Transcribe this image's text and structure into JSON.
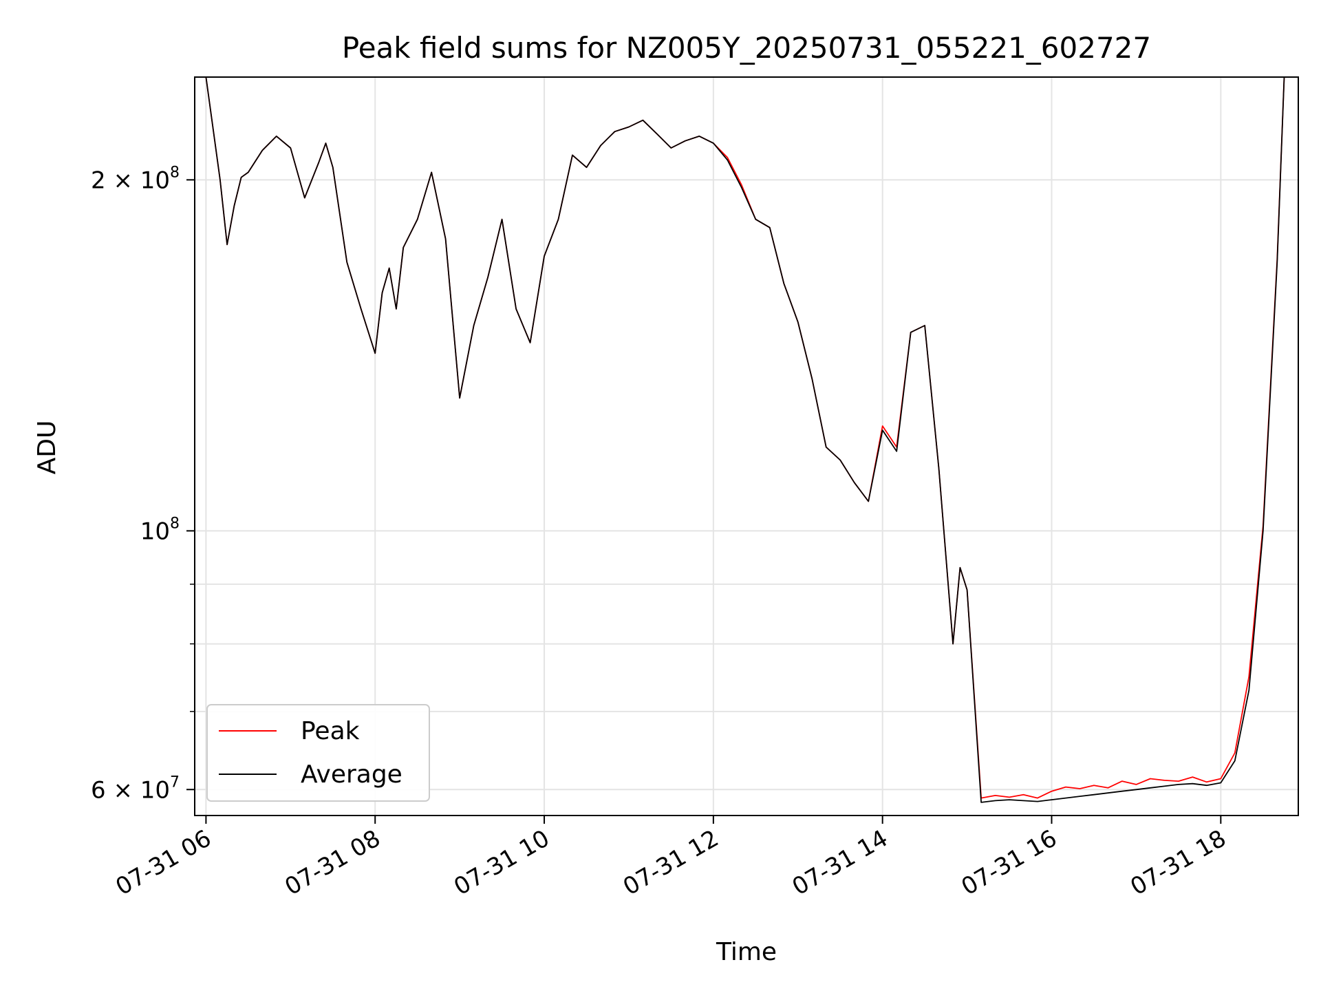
{
  "chart_data": {
    "type": "line",
    "title": "Peak field sums for NZ005Y_20250731_055221_602727",
    "xlabel": "Time",
    "ylabel": "ADU",
    "yscale": "log",
    "xlim": [
      "2025-07-31 05:52",
      "2025-07-31 18:55"
    ],
    "ylim": [
      57000000,
      245000000
    ],
    "x_ticks": [
      "07-31 06",
      "07-31 08",
      "07-31 10",
      "07-31 12",
      "07-31 14",
      "07-31 16",
      "07-31 18"
    ],
    "y_ticks": [
      {
        "value": 200000000,
        "base": "2 × 10",
        "exp": "8"
      },
      {
        "value": 100000000,
        "base": "10",
        "exp": "8"
      },
      {
        "value": 60000000,
        "base": "6 × 10",
        "exp": "7"
      }
    ],
    "y_minor_ticks": [
      70000000,
      80000000,
      90000000
    ],
    "grid": true,
    "legend": {
      "position": "lower-left",
      "entries": [
        {
          "name": "Peak",
          "color": "#ff0000"
        },
        {
          "name": "Average",
          "color": "#000000"
        }
      ]
    },
    "x": [
      "06:00",
      "06:10",
      "06:15",
      "06:20",
      "06:25",
      "06:30",
      "06:40",
      "06:50",
      "07:00",
      "07:10",
      "07:20",
      "07:25",
      "07:30",
      "07:40",
      "07:50",
      "08:00",
      "08:05",
      "08:10",
      "08:15",
      "08:20",
      "08:30",
      "08:40",
      "08:50",
      "09:00",
      "09:10",
      "09:20",
      "09:30",
      "09:40",
      "09:50",
      "10:00",
      "10:10",
      "10:20",
      "10:30",
      "10:40",
      "10:50",
      "11:00",
      "11:10",
      "11:20",
      "11:30",
      "11:40",
      "11:50",
      "12:00",
      "12:10",
      "12:20",
      "12:30",
      "12:40",
      "12:50",
      "13:00",
      "13:10",
      "13:20",
      "13:30",
      "13:40",
      "13:50",
      "14:00",
      "14:10",
      "14:20",
      "14:30",
      "14:40",
      "14:50",
      "14:55",
      "15:00",
      "15:10",
      "15:20",
      "15:30",
      "15:40",
      "15:50",
      "16:00",
      "16:10",
      "16:20",
      "16:30",
      "16:40",
      "16:50",
      "17:00",
      "17:10",
      "17:20",
      "17:30",
      "17:40",
      "17:50",
      "18:00",
      "18:10",
      "18:20",
      "18:30",
      "18:40",
      "18:45"
    ],
    "series": [
      {
        "name": "Average",
        "color": "#000000",
        "values": [
          245000000,
          200000000,
          176000000,
          190000000,
          201000000,
          203000000,
          212000000,
          218000000,
          213000000,
          193000000,
          207000000,
          215000000,
          205000000,
          170000000,
          155000000,
          142000000,
          160000000,
          168000000,
          155000000,
          175000000,
          185000000,
          203000000,
          178000000,
          130000000,
          150000000,
          165000000,
          185000000,
          155000000,
          145000000,
          172000000,
          185000000,
          210000000,
          205000000,
          214000000,
          220000000,
          222000000,
          225000000,
          219000000,
          213000000,
          216000000,
          218000000,
          215000000,
          208000000,
          197000000,
          185000000,
          182000000,
          163000000,
          151000000,
          135000000,
          118000000,
          115000000,
          110000000,
          106000000,
          122000000,
          117000000,
          148000000,
          150000000,
          113000000,
          80000000,
          93000000,
          89000000,
          58500000,
          58700000,
          58800000,
          58700000,
          58600000,
          58800000,
          59000000,
          59200000,
          59400000,
          59600000,
          59800000,
          60000000,
          60200000,
          60400000,
          60600000,
          60700000,
          60500000,
          60800000,
          63500000,
          73000000,
          100000000,
          170000000,
          245000000
        ]
      },
      {
        "name": "Peak",
        "color": "#ff0000",
        "values": [
          245000000,
          200000000,
          176000000,
          190000000,
          201000000,
          203000000,
          212000000,
          218000000,
          213000000,
          193000000,
          207000000,
          215000000,
          205000000,
          170000000,
          155000000,
          142000000,
          160000000,
          168000000,
          155000000,
          175000000,
          185000000,
          203000000,
          178000000,
          130000000,
          150000000,
          165000000,
          185000000,
          155000000,
          145000000,
          172000000,
          185000000,
          210000000,
          205000000,
          214000000,
          220000000,
          222000000,
          225000000,
          219000000,
          213000000,
          216000000,
          218000000,
          215000000,
          209000000,
          198000000,
          185000000,
          182000000,
          163000000,
          151000000,
          135000000,
          118000000,
          115000000,
          110000000,
          106000000,
          123000000,
          118000000,
          148000000,
          150000000,
          113000000,
          80000000,
          93000000,
          89000000,
          59000000,
          59300000,
          59100000,
          59400000,
          59000000,
          59800000,
          60300000,
          60100000,
          60500000,
          60200000,
          61000000,
          60600000,
          61300000,
          61100000,
          61000000,
          61500000,
          60900000,
          61300000,
          64500000,
          75000000,
          101000000,
          171000000,
          245000000
        ]
      }
    ]
  }
}
